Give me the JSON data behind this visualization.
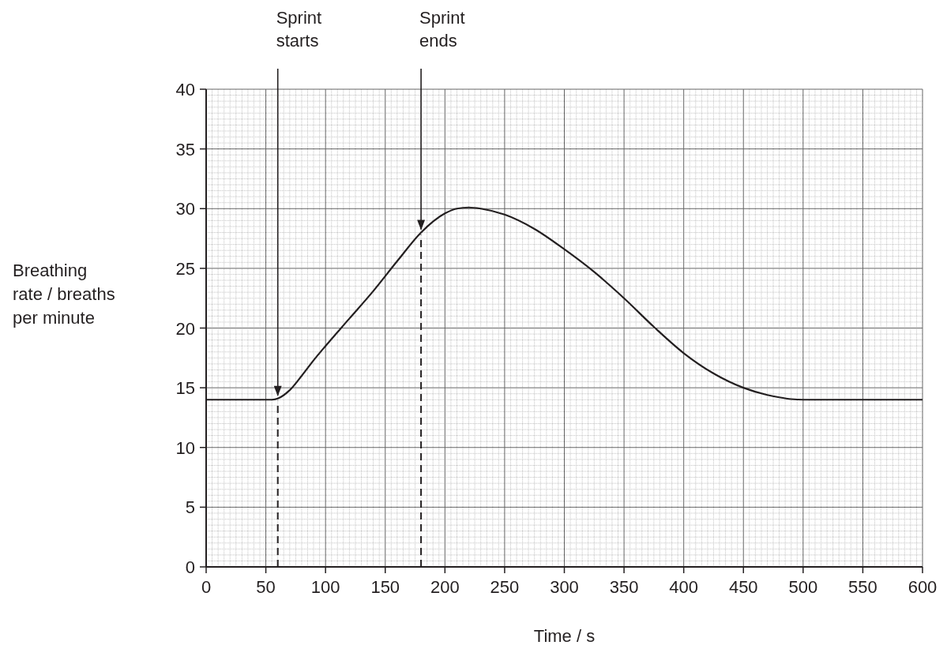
{
  "chart_data": {
    "type": "line",
    "xlabel": "Time / s",
    "ylabel": "Breathing\nrate / breaths\nper minute",
    "x": [
      0,
      20,
      40,
      55,
      60,
      70,
      80,
      90,
      100,
      120,
      140,
      160,
      180,
      200,
      210,
      220,
      230,
      250,
      275,
      300,
      325,
      350,
      375,
      400,
      425,
      450,
      470,
      480,
      490,
      500,
      550,
      600
    ],
    "series": [
      {
        "color": "#231f20",
        "values": [
          14,
          14,
          14,
          14,
          14.1,
          14.8,
          16,
          17.3,
          18.5,
          20.8,
          23.1,
          25.6,
          28,
          29.6,
          30,
          30.1,
          30,
          29.5,
          28.3,
          26.6,
          24.7,
          22.5,
          20.1,
          17.9,
          16.2,
          15,
          14.4,
          14.2,
          14.05,
          14,
          14,
          14
        ]
      }
    ],
    "xlim": [
      0,
      600
    ],
    "ylim": [
      0,
      40
    ],
    "xticks": [
      0,
      50,
      100,
      150,
      200,
      250,
      300,
      350,
      400,
      450,
      500,
      550,
      600
    ],
    "yticks": [
      0,
      5,
      10,
      15,
      20,
      25,
      30,
      35,
      40
    ],
    "grid": true,
    "line_style": "solid",
    "marker": "none",
    "ref_lines": [
      {
        "axis": "x",
        "value": 60,
        "label": "Sprint starts",
        "line_style": "dashed",
        "color": "#231f20"
      },
      {
        "axis": "x",
        "value": 180,
        "label": "Sprint ends",
        "line_style": "dashed",
        "color": "#231f20"
      }
    ]
  }
}
